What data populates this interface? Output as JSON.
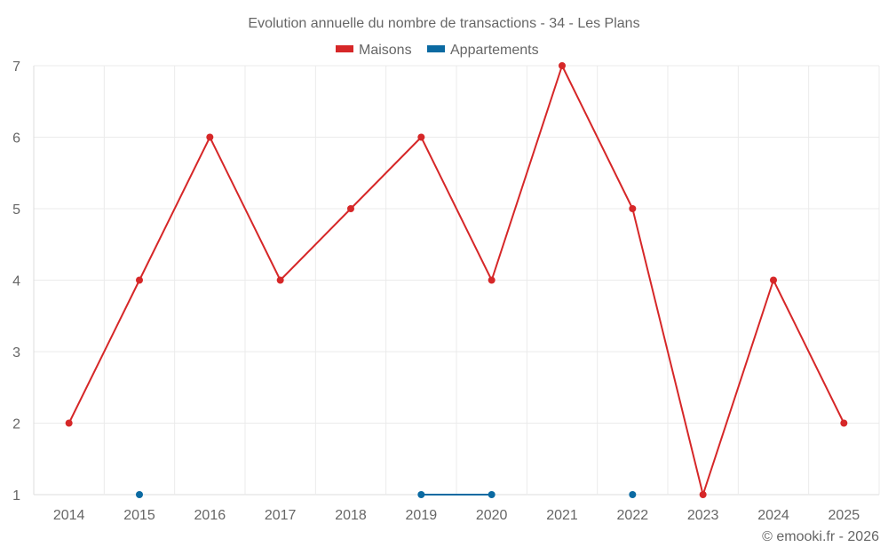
{
  "chart_data": {
    "type": "line",
    "title": "Evolution annuelle du nombre de transactions - 34 - Les Plans",
    "xlabel": "",
    "ylabel": "",
    "categories": [
      "2014",
      "2015",
      "2016",
      "2017",
      "2018",
      "2019",
      "2020",
      "2021",
      "2022",
      "2023",
      "2024",
      "2025"
    ],
    "ylim": [
      1,
      7
    ],
    "yticks": [
      "1",
      "2",
      "3",
      "4",
      "5",
      "6",
      "7"
    ],
    "grid": true,
    "legend_position": "top-center",
    "series": [
      {
        "name": "Maisons",
        "color": "#d62728",
        "values": [
          2,
          4,
          6,
          4,
          5,
          6,
          4,
          7,
          5,
          1,
          4,
          2
        ]
      },
      {
        "name": "Appartements",
        "color": "#0b6aa2",
        "values": [
          null,
          1,
          null,
          null,
          null,
          1,
          1,
          null,
          1,
          null,
          null,
          null
        ]
      }
    ]
  },
  "credit": "© emooki.fr - 2026"
}
